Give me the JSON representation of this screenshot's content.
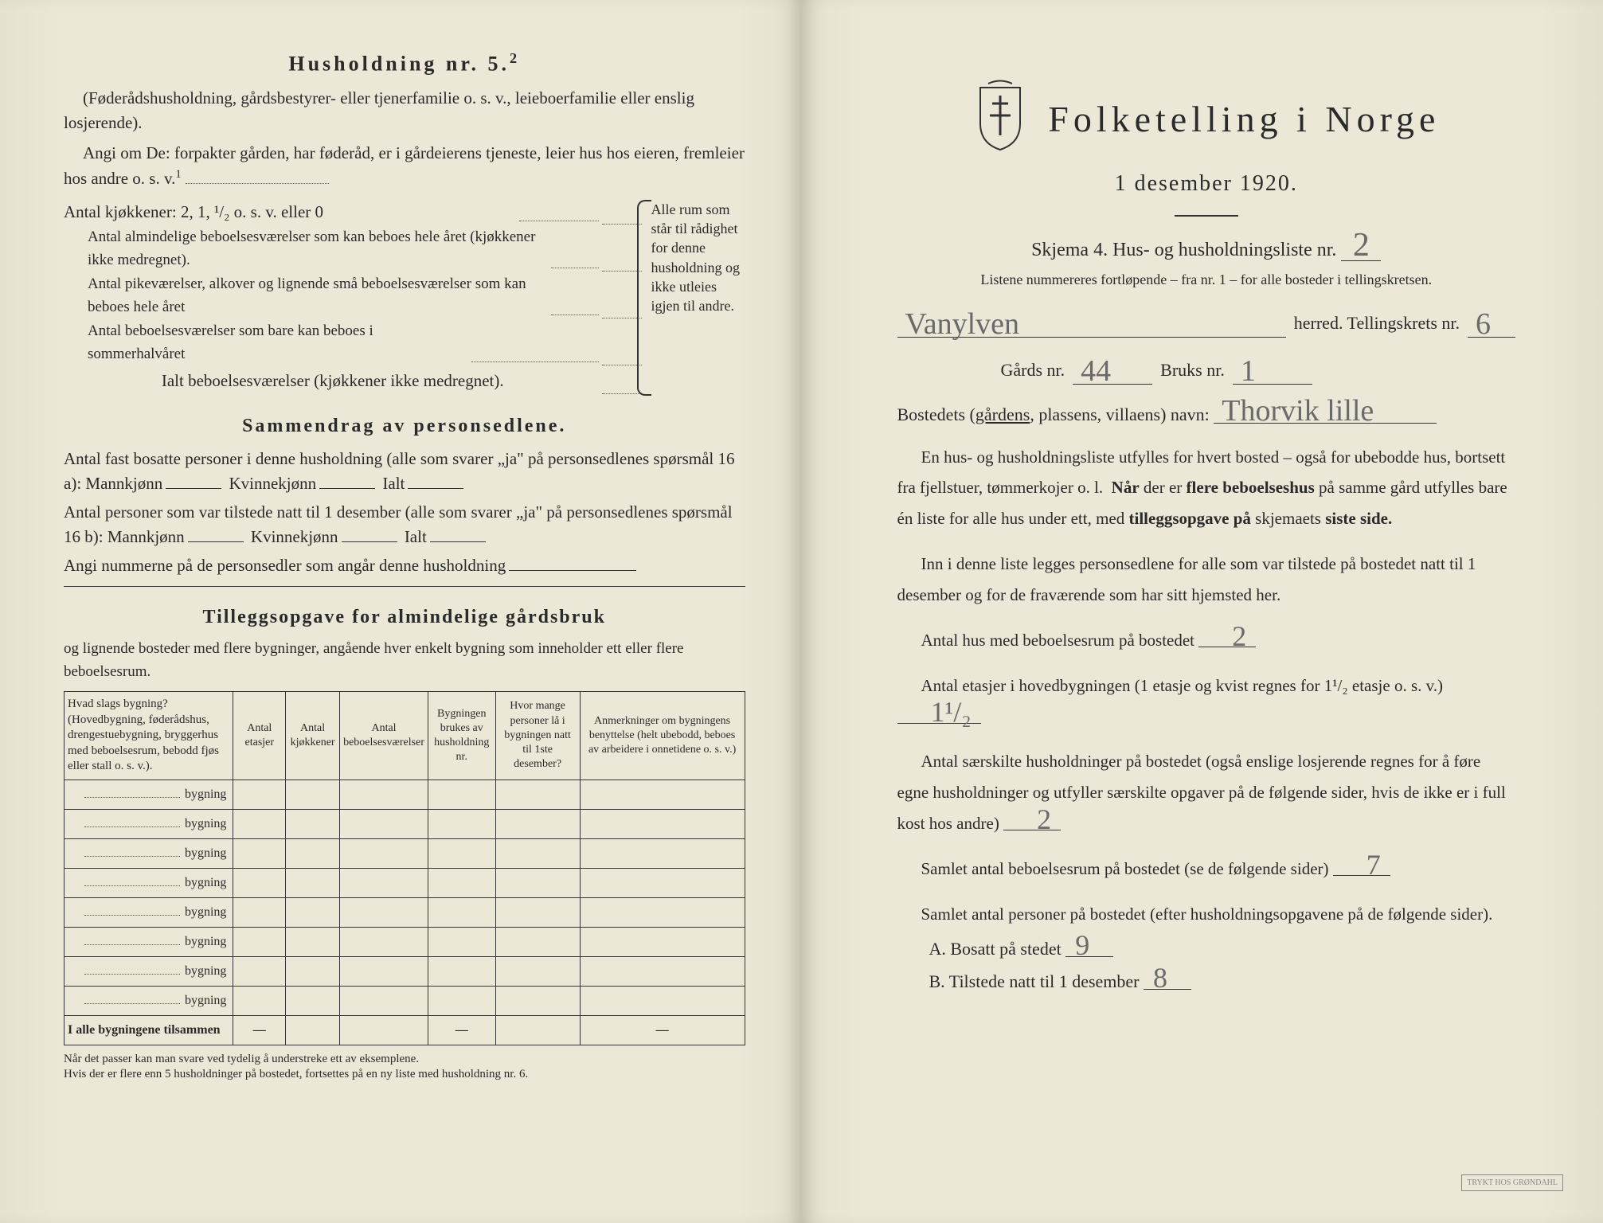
{
  "left": {
    "title": "Husholdning nr. 5.",
    "title_sup": "2",
    "paren": "(Føderådshusholdning, gårdsbestyrer- eller tjenerfamilie o. s. v., leieboerfamilie eller enslig losjerende).",
    "angi": "Angi om De: forpakter gården, har føderåd, er i gårdeierens tjeneste, leier hus hos eieren, fremleier hos andre o. s. v.",
    "angi_sup": "1",
    "kitchens": {
      "line1": "Antal kjøkkener: 2, 1, ¹/₂ o. s. v. eller 0",
      "line2": "Antal almindelige beboelsesværelser som kan beboes hele året (kjøkkener ikke medregnet).",
      "line3": "Antal pikeværelser, alkover og lignende små beboelsesværelser som kan beboes hele året",
      "line4": "Antal beboelsesværelser som bare kan beboes i sommerhalvåret",
      "ialt": "Ialt beboelsesværelser (kjøkkener ikke medregnet).",
      "right_note": "Alle rum som står til rådighet for denne husholdning og ikke utleies igjen til andre."
    },
    "sammendrag": {
      "title": "Sammendrag av personsedlene.",
      "p1a": "Antal fast bosatte personer i denne husholdning (alle som svarer „ja\" på personsedlenes spørsmål 16 a): Mannkjønn",
      "p1b": "Kvinnekjønn",
      "p1c": "Ialt",
      "p2a": "Antal personer som var tilstede natt til 1 desember (alle som svarer „ja\" på personsedlenes spørsmål 16 b): Mannkjønn",
      "p2b": "Kvinnekjønn",
      "p2c": "Ialt",
      "p3": "Angi nummerne på de personsedler som angår denne husholdning"
    },
    "tillegg": {
      "title": "Tilleggsopgave for almindelige gårdsbruk",
      "intro": "og lignende bosteder med flere bygninger, angående hver enkelt bygning som inneholder ett eller flere beboelsesrum.",
      "cols": [
        "Hvad slags bygning?\n(Hovedbygning, føderådshus, drengestuebygning, bryggerhus med beboelsesrum, bebodd fjøs eller stall o. s. v.).",
        "Antal etasjer",
        "Antal kjøkkener",
        "Antal beboelsesværelser",
        "Bygningen brukes av husholdning nr.",
        "Hvor mange personer lå i bygningen natt til 1ste desember?",
        "Anmerkninger om bygningens benyttelse (helt ubebodd, beboes av arbeidere i onnetidene o. s. v.)"
      ],
      "row_label": "bygning",
      "row_count": 8,
      "sum_label": "I alle bygningene tilsammen",
      "dash": "—",
      "note": "Når det passer kan man svare ved tydelig å understreke ett av eksemplene.\nHvis der er flere enn 5 husholdninger på bostedet, fortsettes på en ny liste med husholdning nr. 6."
    }
  },
  "right": {
    "main_title": "Folketelling i Norge",
    "sub_date": "1 desember 1920.",
    "skjema": "Skjema 4.   Hus- og husholdningsliste nr.",
    "skjema_nr": "2",
    "skjema_note": "Listene nummereres fortløpende – fra nr. 1 – for alle bosteder i tellingskretsen.",
    "herred": "Vanylven",
    "herred_label": "herred.   Tellingskrets nr.",
    "krets_nr": "6",
    "gards_label": "Gårds nr.",
    "gards_nr": "44",
    "bruks_label": "Bruks nr.",
    "bruks_nr": "1",
    "bosted_label": "Bostedets (gårdens, plassens, villaens) navn:",
    "bosted_navn": "Thorvik lille",
    "para1": "En hus- og husholdningsliste utfylles for hvert bosted – også for ubebodde hus, bortsett fra fjellstuer, tømmerkojer o. l.  Når der er flere beboelseshus på samme gård utfylles bare én liste for alle hus under ett, med tilleggsopgave på skjemaets siste side.",
    "para2": "Inn i denne liste legges personsedlene for alle som var tilstede på bostedet natt til 1 desember og for de fraværende som har sitt hjemsted her.",
    "q1_label": "Antal hus med beboelsesrum på bostedet",
    "q1_val": "2",
    "q2_label_a": "Antal etasjer i hovedbygningen (1 etasje og kvist regnes for 1¹/₂ etasje o. s. v.)",
    "q2_val": "1¹/₂",
    "q3_label": "Antal særskilte husholdninger på bostedet (også enslige losjerende regnes for å føre egne husholdninger og utfyller særskilte opgaver på de følgende sider, hvis de ikke er i full kost hos andre)",
    "q3_val": "2",
    "q4_label": "Samlet antal beboelsesrum på bostedet (se de følgende sider)",
    "q4_val": "7",
    "q5_label": "Samlet antal personer på bostedet (efter husholdningsopgavene på de følgende sider).",
    "a_label": "A.  Bosatt på stedet",
    "a_val": "9",
    "b_label": "B.  Tilstede natt til 1 desember",
    "b_val": "8",
    "printer": "TRYKT HOS GRØNDAHL"
  }
}
